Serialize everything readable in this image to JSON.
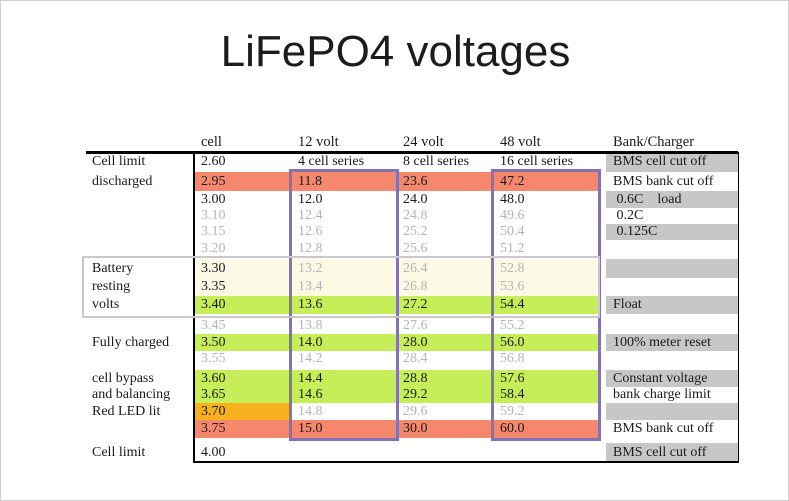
{
  "title": "LiFePO4 voltages",
  "colors": {
    "salmon": "#F5886C",
    "green": "#C6EE59",
    "cream": "#FCFAE5",
    "orange": "#F8B01E",
    "bank_gray": "#C7C7C7",
    "text_dark": "#1A1A1A",
    "text_gray": "#B5B5B5",
    "purple_highlight_border": "#8373B5",
    "battery_box_border": "#C9C9C9",
    "black_rule": "#000000"
  },
  "chart_data": {
    "type": "table",
    "title": "LiFePO4 voltages",
    "columns": [
      "",
      "cell",
      "12 volt",
      "24 volt",
      "48 volt",
      "Bank/Charger"
    ],
    "rows": [
      [
        "Cell limit",
        "2.60",
        "4 cell series",
        "8 cell series",
        "16 cell series",
        "BMS cell cut off"
      ],
      [
        "discharged",
        "2.95",
        "11.8",
        "23.6",
        "47.2",
        "BMS bank cut off"
      ],
      [
        "",
        "3.00",
        "12.0",
        "24.0",
        "48.0",
        " 0.6C    load"
      ],
      [
        "",
        "3.10",
        "12.4",
        "24.8",
        "49.6",
        " 0.2C"
      ],
      [
        "",
        "3.15",
        "12.6",
        "25.2",
        "50.4",
        " 0.125C"
      ],
      [
        "",
        "3.20",
        "12.8",
        "25.6",
        "51.2",
        ""
      ],
      [
        "Battery",
        "3.30",
        "13.2",
        "26.4",
        "52.8",
        ""
      ],
      [
        "resting",
        "3.35",
        "13.4",
        "26.8",
        "53.6",
        ""
      ],
      [
        "volts",
        "3.40",
        "13.6",
        "27.2",
        "54.4",
        "Float"
      ],
      [
        "",
        "3.45",
        "13.8",
        "27.6",
        "55.2",
        ""
      ],
      [
        "Fully charged",
        "3.50",
        "14.0",
        "28.0",
        "56.0",
        "100% meter reset"
      ],
      [
        "",
        "3.55",
        "14.2",
        "28.4",
        "56.8",
        ""
      ],
      [
        "cell bypass",
        "3.60",
        "14.4",
        "28.8",
        "57.6",
        "Constant voltage"
      ],
      [
        "and balancing",
        "3.65",
        "14.6",
        "29.2",
        "58.4",
        "bank charge limit"
      ],
      [
        "Red LED lit",
        "3.70",
        "14.8",
        "29.6",
        "59.2",
        ""
      ],
      [
        "",
        "3.75",
        "15.0",
        "30.0",
        "60.0",
        "BMS bank cut off"
      ],
      [
        "Cell limit",
        "4.00",
        "",
        "",
        "",
        "BMS cell cut off"
      ]
    ],
    "annotations": {
      "purple_boxes": [
        "12 volt column 11.8-15.0",
        "48 volt column 47.2-60.0"
      ],
      "gray_box": "Battery resting volts rows 3.30-3.40"
    }
  },
  "row_styles": [
    {
      "h": 20,
      "cbg": "white",
      "vbg": "white",
      "cfg": "dark",
      "vfg": "dark",
      "bank": "gray",
      "gap": 0
    },
    {
      "h": 19,
      "cbg": "salmon",
      "vbg": "salmon",
      "cfg": "dark",
      "vfg": "dark",
      "bank": "white",
      "gap": 0
    },
    {
      "h": 17,
      "cbg": "white",
      "vbg": "white",
      "cfg": "dark",
      "vfg": "dark",
      "bank": "gray",
      "gap": 0
    },
    {
      "h": 16,
      "cbg": "white",
      "vbg": "white",
      "cfg": "gray",
      "vfg": "gray",
      "bank": "white",
      "gap": 0
    },
    {
      "h": 16,
      "cbg": "white",
      "vbg": "white",
      "cfg": "gray",
      "vfg": "gray",
      "bank": "gray",
      "gap": 0
    },
    {
      "h": 17,
      "cbg": "white",
      "vbg": "white",
      "cfg": "gray",
      "vfg": "gray",
      "bank": "white",
      "gap": 2
    },
    {
      "h": 19,
      "cbg": "cream",
      "vbg": "cream",
      "cfg": "dark",
      "vfg": "gray",
      "bank": "gray",
      "gap": 0
    },
    {
      "h": 18,
      "cbg": "cream",
      "vbg": "cream",
      "cfg": "dark",
      "vfg": "gray",
      "bank": "white",
      "gap": 0
    },
    {
      "h": 18,
      "cbg": "green",
      "vbg": "green",
      "cfg": "dark",
      "vfg": "dark",
      "bank": "gray",
      "gap": 4
    },
    {
      "h": 16,
      "cbg": "white",
      "vbg": "white",
      "cfg": "gray",
      "vfg": "gray",
      "bank": "white",
      "gap": 0
    },
    {
      "h": 17,
      "cbg": "green",
      "vbg": "green",
      "cfg": "dark",
      "vfg": "dark",
      "bank": "gray",
      "gap": 0
    },
    {
      "h": 16,
      "cbg": "white",
      "vbg": "white",
      "cfg": "gray",
      "vfg": "gray",
      "bank": "white",
      "gap": 3
    },
    {
      "h": 17,
      "cbg": "green",
      "vbg": "green",
      "cfg": "dark",
      "vfg": "dark",
      "bank": "gray",
      "gap": 0
    },
    {
      "h": 16,
      "cbg": "green",
      "vbg": "green",
      "cfg": "dark",
      "vfg": "dark",
      "bank": "white",
      "gap": 0
    },
    {
      "h": 17,
      "cbg": "orange",
      "vbg": "white",
      "cfg": "dark",
      "vfg": "gray",
      "bank": "gray",
      "gap": 0
    },
    {
      "h": 18,
      "cbg": "salmon",
      "vbg": "salmon",
      "cfg": "dark",
      "vfg": "dark",
      "bank": "white",
      "gap": 5
    },
    {
      "h": 20,
      "cbg": "white",
      "vbg": "white",
      "cfg": "dark",
      "vfg": "dark",
      "bank": "gray",
      "gap": 0
    }
  ]
}
